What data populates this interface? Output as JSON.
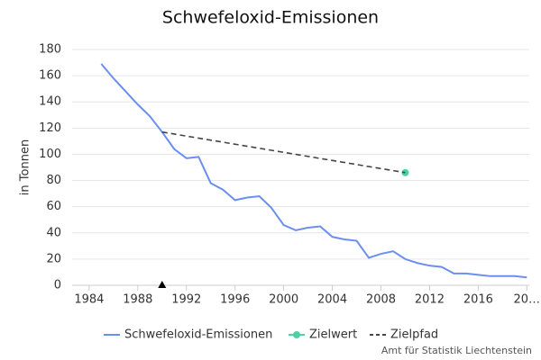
{
  "chart_data": {
    "type": "line",
    "title": "Schwefeloxid-Emissionen",
    "ylabel": "in Tonnen",
    "xlim": [
      1982.6,
      2020.2
    ],
    "xticks": [
      1984,
      1988,
      1992,
      1996,
      2000,
      2004,
      2008,
      2012,
      2016,
      {
        "value": 2020,
        "label": "20…"
      }
    ],
    "ylim": [
      0,
      180
    ],
    "yticks": [
      0,
      20,
      40,
      60,
      80,
      100,
      120,
      140,
      160,
      180
    ],
    "grid": true,
    "series": [
      {
        "name": "Schwefeloxid-Emissionen",
        "color": "#6b8ff0",
        "style": "line",
        "x": [
          1985,
          1986,
          1987,
          1988,
          1989,
          1990,
          1991,
          1992,
          1993,
          1994,
          1995,
          1996,
          1997,
          1998,
          1999,
          2000,
          2001,
          2002,
          2003,
          2004,
          2005,
          2006,
          2007,
          2008,
          2009,
          2010,
          2011,
          2012,
          2013,
          2014,
          2015,
          2016,
          2017,
          2018,
          2019,
          2020
        ],
        "values": [
          169,
          158,
          148,
          138,
          129,
          117,
          104,
          97,
          98,
          78,
          73,
          65,
          67,
          68,
          59,
          46,
          42,
          44,
          45,
          37,
          35,
          34,
          21,
          24,
          26,
          20,
          17,
          15,
          14,
          9,
          9,
          8,
          7,
          7,
          7,
          6
        ]
      },
      {
        "name": "Zielwert",
        "color": "#4cd1a2",
        "style": "point",
        "x": [
          2010
        ],
        "values": [
          86
        ]
      },
      {
        "name": "Zielpfad",
        "color": "#444444",
        "style": "dash",
        "x": [
          1990,
          2010
        ],
        "values": [
          117,
          86
        ]
      }
    ],
    "annotation_points": {
      "x": [
        1990
      ],
      "values": [
        0
      ],
      "color": "#000000"
    },
    "legend": "bottom",
    "source": "Amt für Statistik Liechtenstein"
  }
}
